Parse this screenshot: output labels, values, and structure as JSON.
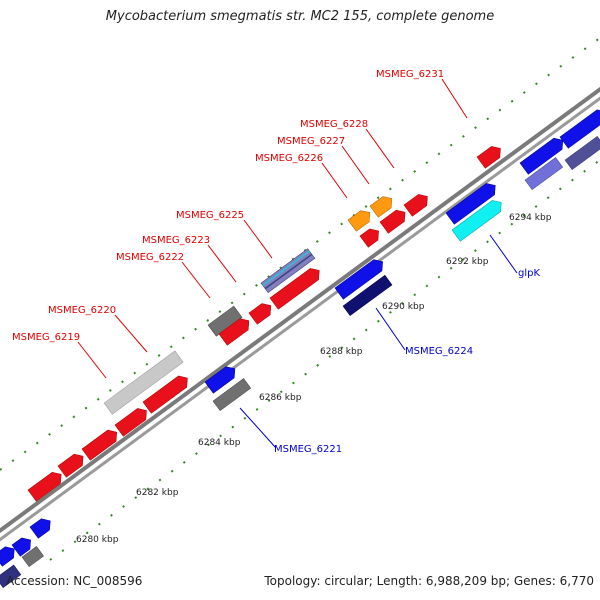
{
  "title": "Mycobacterium smegmatis str. MC2 155, complete genome",
  "footer": {
    "accession": "Accession: NC_008596",
    "summary": "Topology: circular; Length: 6,988,209 bp; Genes: 6,770"
  },
  "colors": {
    "backbone": "#808080",
    "tick": "#2e7d1e",
    "label_red": "#e00000",
    "label_blue": "#0000cc"
  },
  "scale_labels": [
    {
      "label": "6280 kbp"
    },
    {
      "label": "6282 kbp"
    },
    {
      "label": "6284 kbp"
    },
    {
      "label": "6286 kbp"
    },
    {
      "label": "6288 kbp"
    },
    {
      "label": "6290 kbp"
    },
    {
      "label": "6292 kbp"
    },
    {
      "label": "6294 kbp"
    }
  ],
  "top_labels": [
    {
      "name": "MSMEG_6219",
      "color": "red"
    },
    {
      "name": "MSMEG_6220",
      "color": "red"
    },
    {
      "name": "MSMEG_6222",
      "color": "red"
    },
    {
      "name": "MSMEG_6223",
      "color": "red"
    },
    {
      "name": "MSMEG_6225",
      "color": "red"
    },
    {
      "name": "MSMEG_6226",
      "color": "red"
    },
    {
      "name": "MSMEG_6227",
      "color": "red"
    },
    {
      "name": "MSMEG_6228",
      "color": "red"
    },
    {
      "name": "MSMEG_6231",
      "color": "red"
    }
  ],
  "bottom_labels": [
    {
      "name": "MSMEG_6221",
      "color": "blue"
    },
    {
      "name": "MSMEG_6224",
      "color": "blue"
    },
    {
      "name": "glpK",
      "color": "blue"
    }
  ],
  "gene_colors": {
    "red": "#e8101a",
    "orange": "#ff9a10",
    "grey": "#707070",
    "lightgrey": "#c8c8c8",
    "blue": "#1010e8",
    "navy": "#101070",
    "lavender": "#7070d8",
    "cyan": "#10f0f0",
    "striped": "#8080c0"
  }
}
